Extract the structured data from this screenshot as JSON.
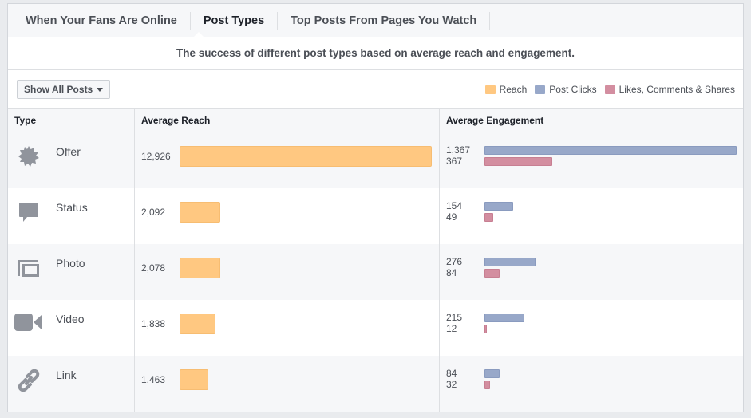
{
  "tabs": [
    "When Your Fans Are Online",
    "Post Types",
    "Top Posts From Pages You Watch"
  ],
  "subtitle": "The success of different post types based on average reach and engagement.",
  "filter_label": "Show All Posts",
  "legend": [
    {
      "label": "Reach",
      "color": "#ffc881"
    },
    {
      "label": "Post Clicks",
      "color": "#98a8c9"
    },
    {
      "label": "Likes, Comments & Shares",
      "color": "#d38ea0"
    }
  ],
  "columns": [
    "Type",
    "Average Reach",
    "Average Engagement"
  ],
  "rows": [
    {
      "type": "Offer",
      "icon": "offer-badge-icon",
      "reach": "12,926",
      "clicks": "1,367",
      "likes": "367"
    },
    {
      "type": "Status",
      "icon": "speech-bubble-icon",
      "reach": "2,092",
      "clicks": "154",
      "likes": "49"
    },
    {
      "type": "Photo",
      "icon": "photo-icon",
      "reach": "2,078",
      "clicks": "276",
      "likes": "84"
    },
    {
      "type": "Video",
      "icon": "video-camera-icon",
      "reach": "1,838",
      "clicks": "215",
      "likes": "12"
    },
    {
      "type": "Link",
      "icon": "link-icon",
      "reach": "1,463",
      "clicks": "84",
      "likes": "32"
    }
  ]
}
